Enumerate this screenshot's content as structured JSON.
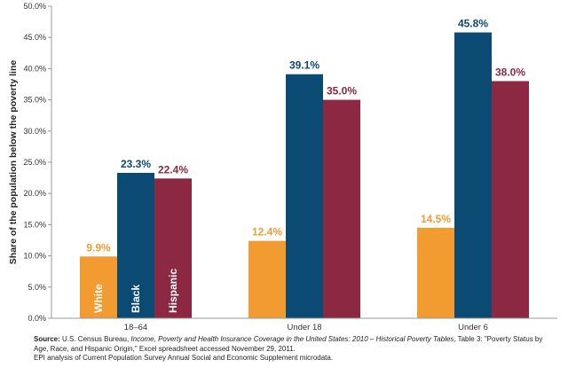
{
  "chart_data": {
    "type": "bar",
    "ylabel": "Share of the population below the poverty line",
    "ylim": [
      0,
      50
    ],
    "yticks": [
      "0.0%",
      "5.0%",
      "10.0%",
      "15.0%",
      "20.0%",
      "25.0%",
      "30.0%",
      "35.0%",
      "40.0%",
      "45.0%",
      "50.0%"
    ],
    "categories": [
      "18–64",
      "Under 18",
      "Under 6"
    ],
    "series": [
      {
        "name": "White",
        "color": "#F29B30",
        "values": [
          9.9,
          12.4,
          14.5
        ],
        "labels": [
          "9.9%",
          "12.4%",
          "14.5%"
        ]
      },
      {
        "name": "Black",
        "color": "#0B4A73",
        "values": [
          23.3,
          39.1,
          45.8
        ],
        "labels": [
          "23.3%",
          "39.1%",
          "45.8%"
        ]
      },
      {
        "name": "Hispanic",
        "color": "#8C2841",
        "values": [
          22.4,
          35.0,
          38.0
        ],
        "labels": [
          "22.4%",
          "35.0%",
          "38.0%"
        ]
      }
    ],
    "value_label_colors": [
      "#F29B30",
      "#0B4A73",
      "#8C2841"
    ],
    "legend": "series names printed vertically inside the first group's bars",
    "grid": false
  },
  "source": {
    "label": "Source:",
    "text1": " U.S. Census Bureau, ",
    "title": "Income, Poverty and Health Insurance Coverage in the United States: 2010 – Historical Poverty Tables",
    "text2": ", Table 3: \"Poverty Status by Age, Race, and Hispanic Origin,\" Excel spreadsheet accessed November 29, 2011.",
    "line2": "EPI analysis of Current Population Survey Annual Social and Economic Supplement microdata."
  }
}
